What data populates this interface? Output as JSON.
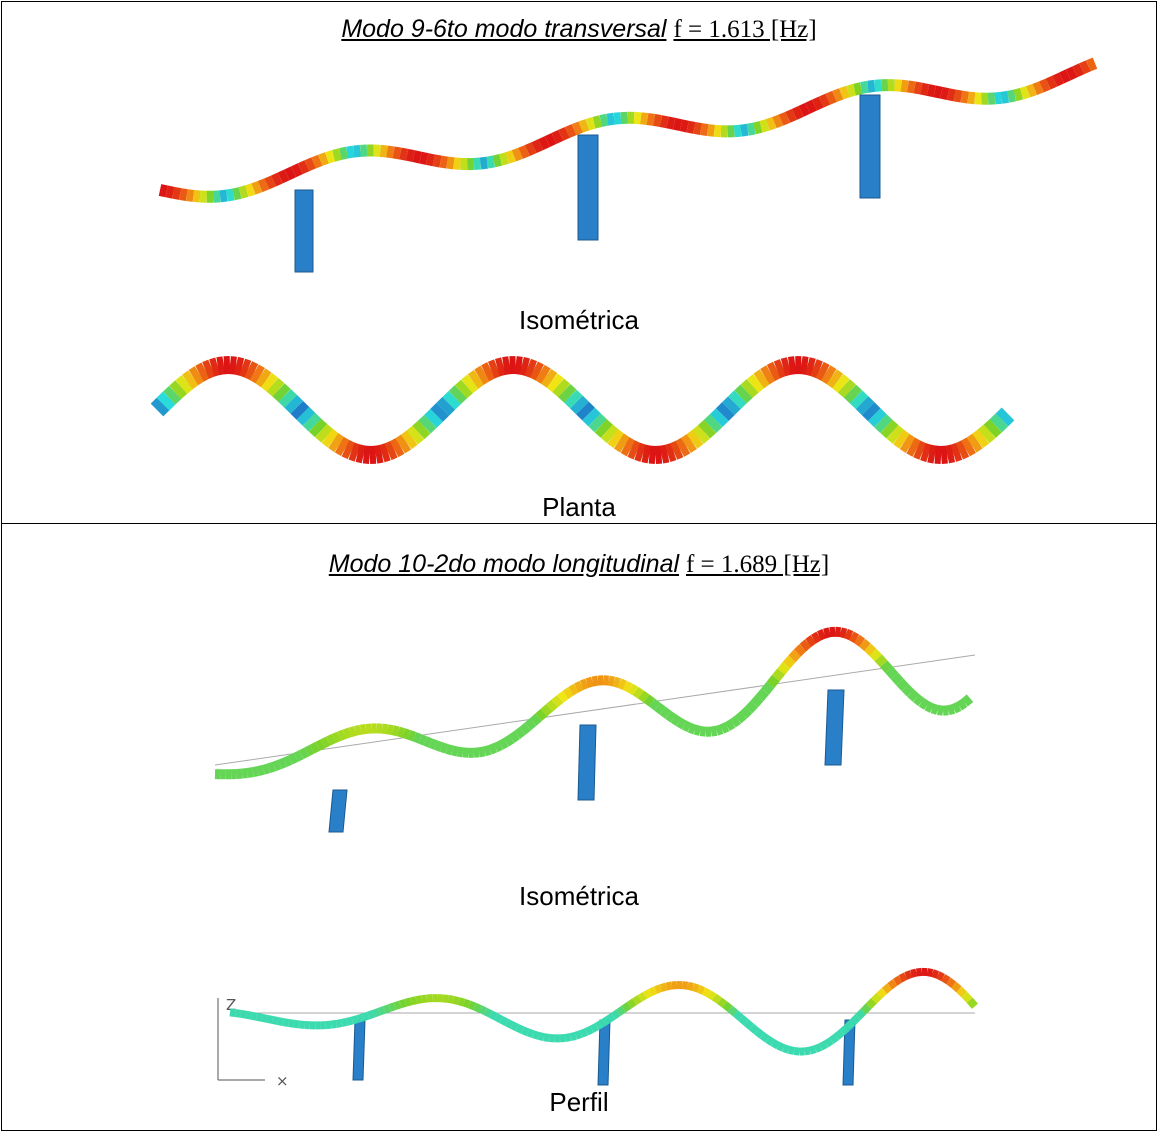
{
  "sections": [
    {
      "title": "Modo 9-6to modo transversal",
      "formula": "f = 1.613 [Hz]",
      "views": [
        "Isométrica",
        "Planta"
      ]
    },
    {
      "title": "Modo 10-2do modo longitudinal",
      "formula": "f = 1.689 [Hz]",
      "views": [
        "Isométrica",
        "Perfil"
      ],
      "axes": {
        "vertical": "Z",
        "horizontal": "×"
      }
    }
  ]
}
